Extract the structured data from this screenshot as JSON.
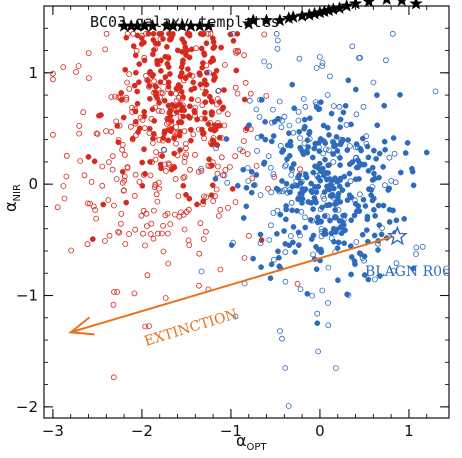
{
  "colors": {
    "red": "#d62a1e",
    "blue": "#2f6bbd",
    "orange": "#e8731c",
    "star": "#000000"
  },
  "chart_data": {
    "type": "scatter",
    "title": "",
    "xlabel": "α",
    "xlabel_sub": "OPT",
    "ylabel": "α",
    "ylabel_sub": "NIR",
    "xlim": [
      -3.1,
      1.45
    ],
    "ylim": [
      -2.1,
      1.6
    ],
    "xticks": [
      -3,
      -2,
      -1,
      0,
      1
    ],
    "yticks": [
      -2,
      -1,
      0,
      1
    ],
    "grid": false,
    "legend": "none",
    "templates": {
      "label": "BC03 galaxy templates",
      "marker": "black-star",
      "x": [
        -2.2,
        -2.12,
        -2.05,
        -1.97,
        -1.88,
        -1.72,
        -1.65,
        -1.55,
        -1.45,
        -1.35,
        -1.25,
        -0.8,
        -0.75,
        -0.6,
        -0.45,
        -0.35,
        -0.3,
        -0.2,
        -0.12,
        -0.06,
        0.0,
        0.05,
        0.1,
        0.15,
        0.22,
        0.3,
        0.4,
        0.55,
        0.75,
        0.92,
        1.08
      ],
      "y": [
        1.42,
        1.42,
        1.42,
        1.42,
        1.42,
        1.42,
        1.42,
        1.42,
        1.42,
        1.42,
        1.42,
        1.44,
        1.47,
        1.47,
        1.47,
        1.49,
        1.5,
        1.51,
        1.52,
        1.53,
        1.54,
        1.55,
        1.56,
        1.57,
        1.58,
        1.6,
        1.62,
        1.64,
        1.66,
        1.65,
        1.62
      ]
    },
    "reference": {
      "label": "BLAGN R06",
      "marker": "open-star",
      "x": 0.87,
      "y": -0.47
    },
    "extinction": {
      "label": "EXTINCTION",
      "from": [
        0.82,
        -0.47
      ],
      "to": [
        -2.8,
        -1.33
      ]
    },
    "series": [
      {
        "color": "red",
        "style": "filled"
      },
      {
        "color": "red",
        "style": "open"
      },
      {
        "color": "blue",
        "style": "filled"
      },
      {
        "color": "blue",
        "style": "open"
      }
    ]
  }
}
